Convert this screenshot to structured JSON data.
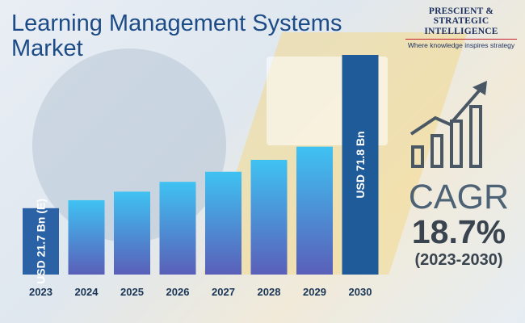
{
  "title": "Learning Management Systems Market",
  "logo": {
    "line1": "PRESCIENT & STRATEGIC",
    "line2": "INTELLIGENCE",
    "tagline": "Where knowledge inspires strategy"
  },
  "cagr": {
    "label": "CAGR",
    "value": "18.7%",
    "period": "(2023-2030)"
  },
  "icons": {
    "growth": "growth-chart-icon"
  },
  "colors": {
    "title": "#1c4b86",
    "bar_top": "#3fc2f2",
    "bar_bottom": "#5a5fb8",
    "highlight_bar": "#1f5b98",
    "tick_text": "#1a3555"
  },
  "chart_data": {
    "type": "bar",
    "categories": [
      "2023",
      "2024",
      "2025",
      "2026",
      "2027",
      "2028",
      "2029",
      "2030"
    ],
    "values": [
      21.7,
      24.3,
      27.1,
      30.3,
      33.6,
      37.5,
      41.8,
      71.8
    ],
    "bar_labels": [
      "USD 21.7 Bn (E)",
      "",
      "",
      "",
      "",
      "",
      "",
      "USD 71.8 Bn"
    ],
    "unit": "USD Bn",
    "title": "",
    "xlabel": "",
    "ylabel": "",
    "grid": false,
    "legend": "none"
  }
}
